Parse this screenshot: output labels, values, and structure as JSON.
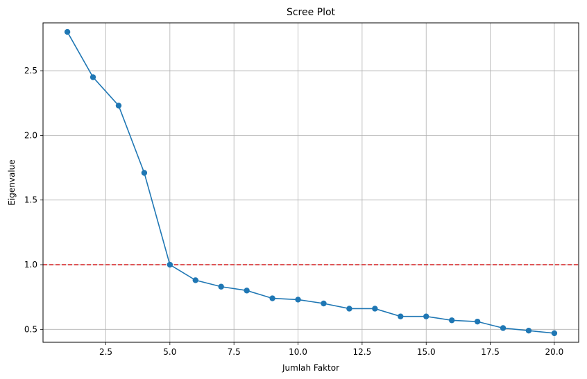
{
  "chart_data": {
    "type": "line",
    "title": "Scree Plot",
    "xlabel": "Jumlah Faktor",
    "ylabel": "Eigenvalue",
    "xlim": [
      0.05,
      20.95
    ],
    "ylim": [
      0.4,
      2.87
    ],
    "xticks": [
      2.5,
      5.0,
      7.5,
      10.0,
      12.5,
      15.0,
      17.5,
      20.0
    ],
    "xtick_labels": [
      "2.5",
      "5.0",
      "7.5",
      "10.0",
      "12.5",
      "15.0",
      "17.5",
      "20.0"
    ],
    "yticks": [
      0.5,
      1.0,
      1.5,
      2.0,
      2.5
    ],
    "ytick_labels": [
      "0.5",
      "1.0",
      "1.5",
      "2.0",
      "2.5"
    ],
    "grid": true,
    "series": [
      {
        "color": "#1f77b4",
        "marker": "circle",
        "x": [
          1,
          2,
          3,
          4,
          5,
          6,
          7,
          8,
          9,
          10,
          11,
          12,
          13,
          14,
          15,
          16,
          17,
          18,
          19,
          20
        ],
        "y": [
          2.8,
          2.45,
          2.23,
          1.71,
          1.0,
          0.88,
          0.83,
          0.8,
          0.74,
          0.73,
          0.7,
          0.66,
          0.66,
          0.6,
          0.6,
          0.57,
          0.56,
          0.51,
          0.49,
          0.47
        ]
      }
    ],
    "reference_line": {
      "axis": "y",
      "value": 1.0,
      "color": "#d62728",
      "style": "dashed"
    }
  }
}
